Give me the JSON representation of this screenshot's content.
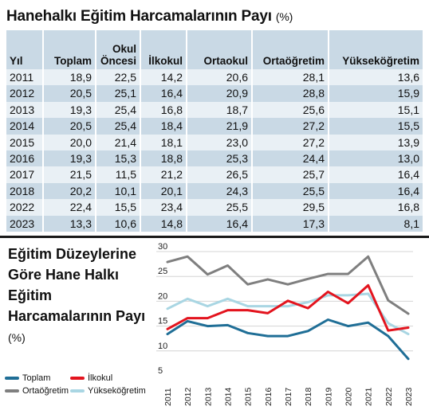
{
  "table": {
    "title": "Hanehalkı Eğitim Harcamalarının Payı",
    "unit": "(%)",
    "headers": [
      "Yıl",
      "Toplam",
      "Okul Öncesi",
      "İlkokul",
      "Ortaokul",
      "Ortaöğretim",
      "Yükseköğretim"
    ],
    "rows": [
      [
        "2011",
        "18,9",
        "22,5",
        "14,2",
        "20,6",
        "28,1",
        "13,6"
      ],
      [
        "2012",
        "20,5",
        "25,1",
        "16,4",
        "20,9",
        "28,8",
        "15,9"
      ],
      [
        "2013",
        "19,3",
        "25,4",
        "16,8",
        "18,7",
        "25,6",
        "15,1"
      ],
      [
        "2014",
        "20,5",
        "25,4",
        "18,4",
        "21,9",
        "27,2",
        "15,5"
      ],
      [
        "2015",
        "20,0",
        "21,4",
        "18,1",
        "23,0",
        "27,2",
        "13,9"
      ],
      [
        "2016",
        "19,3",
        "15,3",
        "18,8",
        "25,3",
        "24,4",
        "13,0"
      ],
      [
        "2017",
        "21,5",
        "11,5",
        "21,2",
        "26,5",
        "25,7",
        "16,4"
      ],
      [
        "2018",
        "20,2",
        "10,1",
        "20,1",
        "24,3",
        "25,5",
        "16,4"
      ],
      [
        "2022",
        "22,4",
        "15,5",
        "23,4",
        "25,5",
        "29,5",
        "16,8"
      ],
      [
        "2023",
        "13,3",
        "10,6",
        "14,8",
        "16,4",
        "17,3",
        "8,1"
      ]
    ]
  },
  "chart": {
    "title": "Eğitim Düzeylerine Göre Hane Halkı Eğitim Harcamalarının Payı",
    "unit": "(%)"
  },
  "chart_data": {
    "type": "line",
    "x": [
      "2011",
      "2012",
      "2013",
      "2014",
      "2015",
      "2016",
      "2017",
      "2018",
      "2019",
      "2020",
      "2021",
      "2022",
      "2023"
    ],
    "ylim": [
      5,
      30
    ],
    "yticks": [
      5,
      10,
      15,
      20,
      25,
      30
    ],
    "grid": true,
    "legend_position": "bottom-left",
    "series": [
      {
        "name": "Toplam",
        "color": "#1f6e96",
        "values": [
          13.4,
          16.0,
          15.0,
          15.2,
          13.6,
          13.0,
          13.0,
          14.0,
          16.3,
          15.0,
          15.7,
          13.0,
          8.4
        ]
      },
      {
        "name": "İlkokul",
        "color": "#e3141e",
        "values": [
          14.4,
          16.6,
          16.6,
          18.2,
          18.2,
          17.6,
          20.1,
          18.6,
          21.9,
          19.6,
          23.2,
          14.1,
          14.7
        ]
      },
      {
        "name": "Ortaöğretim",
        "color": "#7f7f7f",
        "values": [
          27.9,
          29.0,
          25.4,
          27.2,
          23.4,
          24.4,
          23.4,
          24.5,
          25.5,
          25.5,
          29.0,
          20.2,
          17.5
        ]
      },
      {
        "name": "Yükseköğretim",
        "color": "#a9d6e3",
        "values": [
          18.5,
          20.5,
          19.0,
          20.5,
          19.0,
          19.0,
          19.0,
          19.8,
          21.2,
          21.2,
          21.5,
          15.6,
          13.4
        ]
      }
    ]
  }
}
